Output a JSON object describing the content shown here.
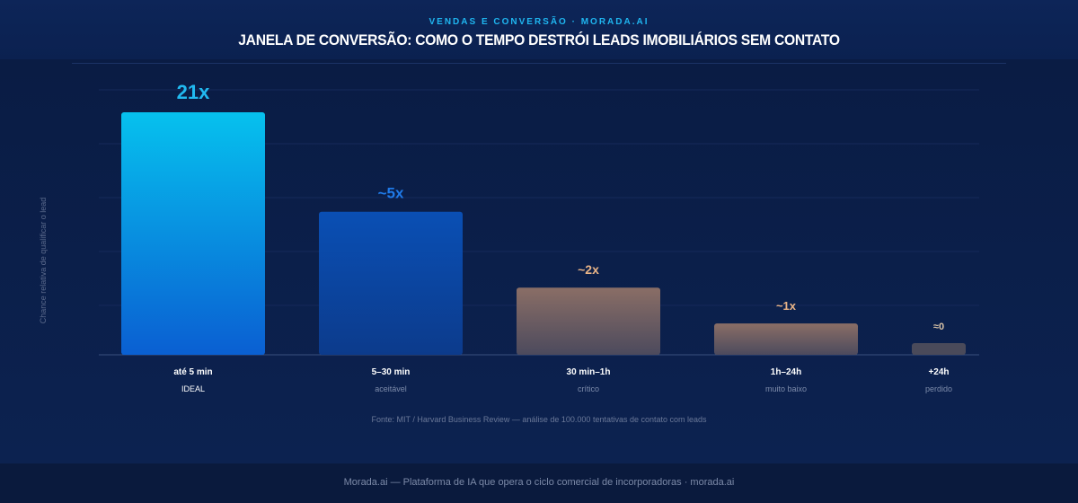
{
  "header": {
    "kicker": "VENDAS E CONVERSÃO · MORADA.AI",
    "title": "JANELA DE CONVERSÃO: COMO O TEMPO DESTRÓI LEADS IMOBILIÁRIOS SEM CONTATO"
  },
  "source": "Fonte: MIT / Harvard Business Review — análise de 100.000 tentativas de contato com leads",
  "footer": "Morada.ai — Plataforma de IA que opera o ciclo comercial de incorporadoras · morada.ai",
  "chart_data": {
    "type": "bar",
    "title": "JANELA DE CONVERSÃO: COMO O TEMPO DESTRÓI LEADS IMOBILIÁRIOS SEM CONTATO",
    "ylabel": "Chance relativa de qualificar o lead",
    "xlabel": "",
    "categories": [
      "até 5 min",
      "5–30 min",
      "30 min–1h",
      "1h–24h",
      "+24h"
    ],
    "sublabels": [
      "IDEAL",
      "aceitável",
      "crítico",
      "muito baixo",
      "perdido"
    ],
    "values": [
      21,
      5,
      2,
      1,
      0
    ],
    "value_labels": [
      "21x",
      "~5x",
      "~2x",
      "~1x",
      "≈0"
    ],
    "bar_display_levels": [
      1.0,
      0.59,
      0.277,
      0.129,
      0.048
    ],
    "ylim": [
      0,
      21
    ],
    "grid": true,
    "colors": {
      "ideal_top": "#06c1ee",
      "ideal_bottom": "#0a5fd2",
      "acceptable_top": "#0a4fb4",
      "acceptable_bottom": "#0c3b8c",
      "warm_top": "#8a6e66",
      "warm_bottom": "#4c4a5d",
      "lost": "#4a4a5a",
      "label_ideal": "#21b9f0",
      "label_acceptable": "#1f7ae8",
      "label_warm": "#e9b487",
      "label_lost": "#d9c3a7"
    }
  }
}
